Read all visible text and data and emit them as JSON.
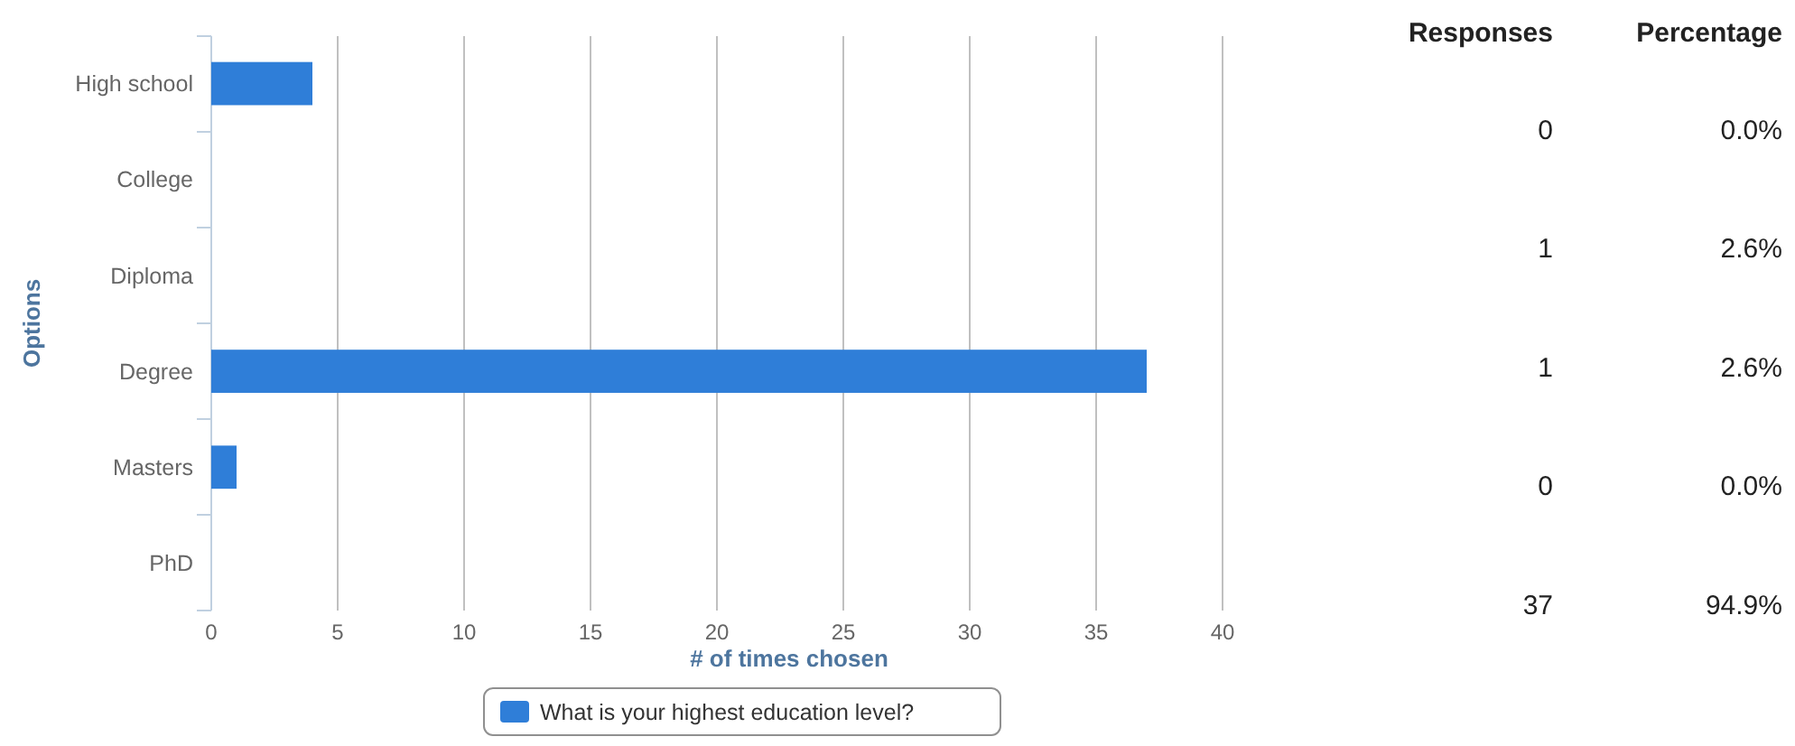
{
  "chart_data": [
    {
      "type": "bar",
      "orientation": "horizontal",
      "categories": [
        "High school",
        "College",
        "Diploma",
        "Degree",
        "Masters",
        "PhD"
      ],
      "xlabel": "# of times chosen",
      "ylabel": "Options",
      "series": [
        {
          "name": "What is your highest education level?",
          "color": "#2f7ed8",
          "values": [
            4,
            0,
            0,
            37,
            1,
            0
          ]
        }
      ],
      "xlim": [
        0,
        40
      ],
      "xticks": [
        0,
        5,
        10,
        15,
        20,
        25,
        30,
        35,
        40
      ],
      "grid": "x",
      "legend": "bottom"
    },
    {
      "type": "other",
      "annotations": [
        "Responses",
        "Percentage",
        "0",
        "0.0%",
        "1",
        "2.6%",
        "1",
        "2.6%",
        "0",
        "0.0%",
        "37",
        "94.9%"
      ]
    }
  ]
}
